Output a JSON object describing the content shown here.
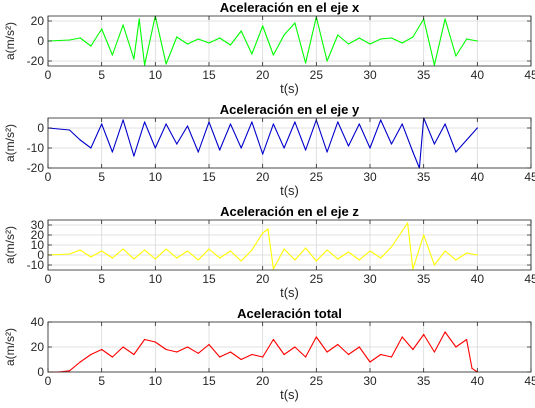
{
  "chart_data": [
    {
      "type": "line",
      "title": "Aceleración en el eje x",
      "xlabel": "t(s)",
      "ylabel": "a(m/s²)",
      "xlim": [
        0,
        45
      ],
      "ylim": [
        -25,
        25
      ],
      "xticks": [
        0,
        5,
        10,
        15,
        20,
        25,
        30,
        35,
        40,
        45
      ],
      "yticks": [
        -20,
        0,
        20
      ],
      "grid": true,
      "series": [
        {
          "color": "#00ff00",
          "x": [
            0,
            2,
            3,
            4,
            5,
            6,
            7,
            8,
            8.5,
            9,
            10,
            11,
            12,
            13,
            14,
            15,
            16,
            17,
            18,
            19,
            20,
            21,
            22,
            23,
            24,
            25,
            26,
            27,
            28,
            29,
            30,
            31,
            32,
            33,
            34,
            35,
            36,
            37,
            38,
            39,
            40
          ],
          "y": [
            0,
            1,
            3,
            -5,
            12,
            -14,
            16,
            -18,
            22,
            -24,
            25,
            -23,
            4,
            -3,
            2,
            -2,
            3,
            -4,
            10,
            -13,
            15,
            -14,
            6,
            18,
            -22,
            24,
            -20,
            6,
            -3,
            3,
            -3,
            2,
            3,
            -2,
            4,
            22,
            -24,
            22,
            -15,
            2,
            0
          ]
        }
      ]
    },
    {
      "type": "line",
      "title": "Aceleración en el eje y",
      "xlabel": "t(s)",
      "ylabel": "a(m/s²)",
      "xlim": [
        0,
        45
      ],
      "ylim": [
        -20,
        5
      ],
      "xticks": [
        0,
        5,
        10,
        15,
        20,
        25,
        30,
        35,
        40,
        45
      ],
      "yticks": [
        -20,
        -10,
        0
      ],
      "grid": true,
      "series": [
        {
          "color": "#0000cc",
          "x": [
            0,
            2,
            3,
            4,
            5,
            6,
            7,
            8,
            9,
            10,
            11,
            12,
            13,
            14,
            15,
            16,
            17,
            18,
            19,
            20,
            21,
            22,
            23,
            24,
            25,
            26,
            27,
            28,
            29,
            30,
            31,
            32,
            33,
            34,
            34.6,
            35,
            36,
            37,
            38,
            39,
            40
          ],
          "y": [
            0,
            -1,
            -6,
            -10,
            2,
            -12,
            4,
            -14,
            3,
            -10,
            2,
            -8,
            1,
            -12,
            3,
            -11,
            2,
            -10,
            3,
            -13,
            2,
            -10,
            3,
            -11,
            4,
            -12,
            3,
            -9,
            2,
            -10,
            4,
            -8,
            2,
            -12,
            -20,
            5,
            -8,
            2,
            -12,
            -6,
            0
          ]
        }
      ]
    },
    {
      "type": "line",
      "title": "Aceleración en el eje z",
      "xlabel": "t(s)",
      "ylabel": "a(m/s²)",
      "xlim": [
        0,
        45
      ],
      "ylim": [
        -15,
        35
      ],
      "xticks": [
        0,
        5,
        10,
        15,
        20,
        25,
        30,
        35,
        40,
        45
      ],
      "yticks": [
        -10,
        0,
        10,
        20,
        30
      ],
      "grid": true,
      "series": [
        {
          "color": "#ffff00",
          "x": [
            0,
            2,
            3,
            4,
            5,
            6,
            7,
            8,
            9,
            10,
            11,
            12,
            13,
            14,
            15,
            16,
            17,
            18,
            19,
            20,
            20.5,
            21,
            22,
            23,
            24,
            25,
            26,
            27,
            28,
            29,
            30,
            31,
            32,
            33,
            33.5,
            34,
            35,
            36,
            37,
            38,
            39,
            40
          ],
          "y": [
            0,
            1,
            5,
            -2,
            4,
            -3,
            6,
            -4,
            5,
            -4,
            6,
            -3,
            4,
            -5,
            6,
            -3,
            4,
            -6,
            5,
            22,
            26,
            -14,
            6,
            -5,
            7,
            -6,
            5,
            -4,
            3,
            -5,
            4,
            -3,
            8,
            24,
            32,
            -14,
            20,
            -10,
            4,
            -5,
            2,
            0
          ]
        }
      ]
    },
    {
      "type": "line",
      "title": "Aceleración total",
      "xlabel": "t(s)",
      "ylabel": "a(m/s²)",
      "xlim": [
        0,
        45
      ],
      "ylim": [
        0,
        40
      ],
      "xticks": [
        0,
        5,
        10,
        15,
        20,
        25,
        30,
        35,
        40,
        45
      ],
      "yticks": [
        0,
        20,
        40
      ],
      "grid": true,
      "series": [
        {
          "color": "#ff0000",
          "x": [
            0,
            1,
            2,
            3,
            4,
            5,
            6,
            7,
            8,
            9,
            10,
            11,
            12,
            13,
            14,
            15,
            16,
            17,
            18,
            19,
            20,
            21,
            22,
            23,
            24,
            25,
            26,
            27,
            28,
            29,
            30,
            31,
            32,
            33,
            34,
            35,
            36,
            37,
            38,
            39,
            39.5,
            40
          ],
          "y": [
            0,
            0,
            1,
            8,
            14,
            18,
            12,
            20,
            14,
            26,
            24,
            18,
            16,
            20,
            15,
            22,
            12,
            16,
            10,
            14,
            12,
            26,
            14,
            20,
            12,
            28,
            16,
            22,
            14,
            20,
            8,
            14,
            12,
            28,
            18,
            30,
            16,
            32,
            20,
            26,
            3,
            0
          ]
        }
      ]
    }
  ]
}
